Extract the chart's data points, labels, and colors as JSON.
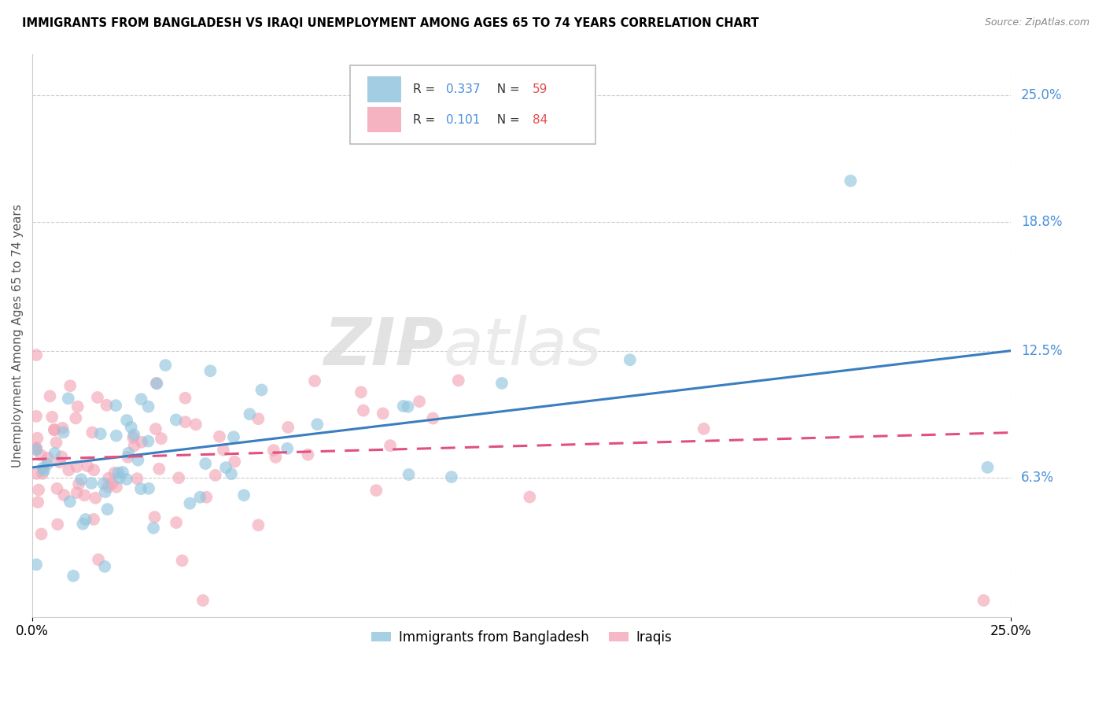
{
  "title": "IMMIGRANTS FROM BANGLADESH VS IRAQI UNEMPLOYMENT AMONG AGES 65 TO 74 YEARS CORRELATION CHART",
  "source": "Source: ZipAtlas.com",
  "ylabel": "Unemployment Among Ages 65 to 74 years",
  "xlim": [
    0.0,
    0.25
  ],
  "ylim": [
    -0.005,
    0.27
  ],
  "ytick_vals": [
    0.063,
    0.125,
    0.188,
    0.25
  ],
  "ytick_labels": [
    "6.3%",
    "12.5%",
    "18.8%",
    "25.0%"
  ],
  "xtick_vals": [
    0.0,
    0.25
  ],
  "xtick_labels": [
    "0.0%",
    "25.0%"
  ],
  "legend1_R": "0.337",
  "legend1_N": "59",
  "legend2_R": "0.101",
  "legend2_N": "84",
  "blue_color": "#92c5de",
  "pink_color": "#f4a6b8",
  "blue_line_color": "#3a7ebf",
  "pink_line_color": "#e05080",
  "blue_line_start_y": 0.068,
  "blue_line_end_y": 0.125,
  "pink_line_start_y": 0.072,
  "pink_line_end_y": 0.085,
  "watermark_zip": "ZIP",
  "watermark_atlas": "atlas",
  "legend_label_1": "Immigrants from Bangladesh",
  "legend_label_2": "Iraqis"
}
